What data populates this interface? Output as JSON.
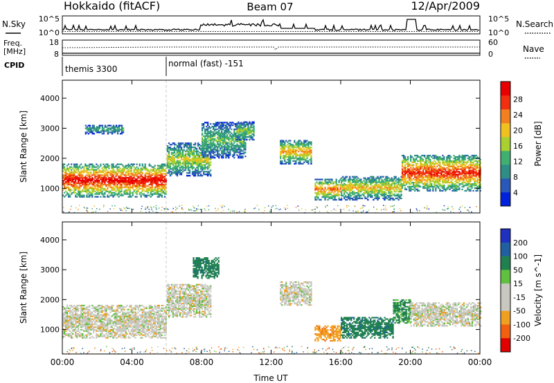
{
  "header": {
    "station": "Hokkaido (fitACF)",
    "beam": "Beam 07",
    "date": "12/Apr/2009"
  },
  "nsky_panel": {
    "left_label": "N.Sky",
    "right_label": "N.Search",
    "left_ticks": [
      "10^5",
      "10^0"
    ],
    "right_ticks": [
      "10^5",
      "10^0"
    ]
  },
  "freq_panel": {
    "left_label_1": "Freq.",
    "left_label_2": "[MHz]",
    "right_label": "Nave",
    "left_ticks": [
      "18",
      "8"
    ],
    "right_ticks": [
      "60",
      "0"
    ]
  },
  "cpid_panel": {
    "label": "CPID",
    "modes": [
      "themis 3300",
      "normal (fast) -151"
    ]
  },
  "colors": {
    "power_scale": [
      "#0022dd",
      "#2a58b8",
      "#2f8f86",
      "#3fb070",
      "#a8d030",
      "#f0c020",
      "#f08020",
      "#f03010",
      "#e80000"
    ],
    "velocity_scale": [
      "#2030c0",
      "#2060a0",
      "#208050",
      "#60c040",
      "#c8c8c0",
      "#c8c8c0",
      "#f0a020",
      "#f06010",
      "#e00000"
    ],
    "ground_scatter": "#b8b8b0"
  },
  "chart_data": [
    {
      "type": "heatmap",
      "title": "",
      "xlabel": "",
      "ylabel": "Slant Range [km]",
      "xlim_hours": [
        0,
        24
      ],
      "ylim_km": [
        180,
        4600
      ],
      "yticks": [
        "1000",
        "2000",
        "3000",
        "4000"
      ],
      "colorbar_label": "Power [dB]",
      "colorbar_ticks": [
        "4",
        "8",
        "12",
        "16",
        "20",
        "24",
        "28"
      ],
      "echo_regions": [
        {
          "t": [
            0.0,
            6.0
          ],
          "range_km": [
            700,
            1800
          ],
          "peak_db": 30
        },
        {
          "t": [
            1.3,
            3.5
          ],
          "range_km": [
            2800,
            3100
          ],
          "peak_db": 12
        },
        {
          "t": [
            6.0,
            8.5
          ],
          "range_km": [
            1400,
            2500
          ],
          "peak_db": 18
        },
        {
          "t": [
            8.0,
            10.5
          ],
          "range_km": [
            2000,
            3200
          ],
          "peak_db": 14
        },
        {
          "t": [
            10.0,
            11.0
          ],
          "range_km": [
            2600,
            3200
          ],
          "peak_db": 16
        },
        {
          "t": [
            12.5,
            14.3
          ],
          "range_km": [
            1800,
            2600
          ],
          "peak_db": 22
        },
        {
          "t": [
            14.5,
            16.0
          ],
          "range_km": [
            600,
            1300
          ],
          "peak_db": 24
        },
        {
          "t": [
            16.0,
            19.5
          ],
          "range_km": [
            600,
            1400
          ],
          "peak_db": 20
        },
        {
          "t": [
            19.5,
            24.0
          ],
          "range_km": [
            900,
            2100
          ],
          "peak_db": 28
        }
      ]
    },
    {
      "type": "heatmap",
      "title": "",
      "xlabel": "Time UT",
      "ylabel": "Slant Range [km]",
      "xlim_hours": [
        0,
        24
      ],
      "ylim_km": [
        180,
        4600
      ],
      "xticks": [
        "00:00",
        "04:00",
        "08:00",
        "12:00",
        "16:00",
        "20:00",
        "00:00"
      ],
      "yticks": [
        "1000",
        "2000",
        "3000",
        "4000"
      ],
      "colorbar_label": "Velocity [m s^-1]",
      "colorbar_ticks": [
        "200",
        "100",
        "50",
        "15",
        "-15",
        "-50",
        "-100",
        "-200"
      ],
      "echo_regions": [
        {
          "t": [
            0.0,
            6.0
          ],
          "range_km": [
            700,
            1800
          ],
          "velocity": 0
        },
        {
          "t": [
            6.0,
            8.5
          ],
          "range_km": [
            1400,
            2500
          ],
          "velocity": 0
        },
        {
          "t": [
            7.5,
            9.0
          ],
          "range_km": [
            2700,
            3400
          ],
          "velocity": 60
        },
        {
          "t": [
            12.5,
            14.3
          ],
          "range_km": [
            1800,
            2600
          ],
          "velocity": 0
        },
        {
          "t": [
            14.5,
            16.0
          ],
          "range_km": [
            600,
            1100
          ],
          "velocity": -60
        },
        {
          "t": [
            16.0,
            19.0
          ],
          "range_km": [
            700,
            1400
          ],
          "velocity": 60
        },
        {
          "t": [
            19.0,
            20.0
          ],
          "range_km": [
            1200,
            2000
          ],
          "velocity": 40
        },
        {
          "t": [
            20.0,
            24.0
          ],
          "range_km": [
            1100,
            1900
          ],
          "velocity": 0
        }
      ]
    }
  ]
}
